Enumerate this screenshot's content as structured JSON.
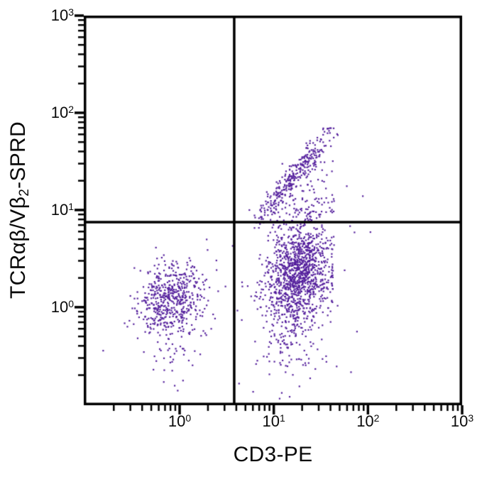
{
  "page": {
    "background": "#ffffff",
    "description": "Flow cytometry two-parameter dot plot with quadrant gates"
  },
  "chart_data": {
    "type": "scatter",
    "plot_kind": "flow-cytometry-dot-plot",
    "title": "",
    "xlabel": "CD3-PE",
    "ylabel_parts": {
      "pre": "TCRαβ/Vβ",
      "sub": "2",
      "post": "-SPRD"
    },
    "x_scale": "log",
    "y_scale": "log",
    "x_range": [
      0.096,
      1000
    ],
    "y_range": [
      0.098,
      1000
    ],
    "x_major_ticks": [
      {
        "base": "10",
        "exp": "0",
        "value": 1
      },
      {
        "base": "10",
        "exp": "1",
        "value": 10
      },
      {
        "base": "10",
        "exp": "2",
        "value": 100
      },
      {
        "base": "10",
        "exp": "3",
        "value": 1000
      }
    ],
    "y_major_ticks": [
      {
        "base": "10",
        "exp": "0",
        "value": 1
      },
      {
        "base": "10",
        "exp": "1",
        "value": 10
      },
      {
        "base": "10",
        "exp": "2",
        "value": 100
      },
      {
        "base": "10",
        "exp": "3",
        "value": 1000
      }
    ],
    "minor_tick_steps": [
      2,
      3,
      4,
      5,
      6,
      7,
      8,
      9
    ],
    "grid": false,
    "legend": false,
    "quadrant_gates": {
      "x_value": 3.8,
      "y_value": 7.5
    },
    "colors": {
      "dots": "#55209d",
      "axis": "#000000",
      "background": "#ffffff"
    },
    "dot_size_px": 2.2,
    "seed": 11,
    "populations": [
      {
        "name": "cd3neg-tcrneg-cluster",
        "kind": "gauss",
        "n": 540,
        "center_log": [
          -0.1,
          0.09
        ],
        "sigma_log": [
          0.17,
          0.19
        ],
        "corr": 0.05
      },
      {
        "name": "cd3neg-low-tail",
        "kind": "gauss",
        "n": 40,
        "center_log": [
          -0.07,
          -0.5
        ],
        "sigma_log": [
          0.13,
          0.28
        ],
        "corr": 0.0
      },
      {
        "name": "cd3pos-main-cluster",
        "kind": "gauss",
        "n": 1180,
        "center_log": [
          1.27,
          0.34
        ],
        "sigma_log": [
          0.175,
          0.27
        ],
        "corr": 0.18,
        "clamp_x_max": 1.615
      },
      {
        "name": "cd3pos-low-tail",
        "kind": "gauss",
        "n": 105,
        "center_log": [
          1.17,
          -0.38
        ],
        "sigma_log": [
          0.16,
          0.3
        ],
        "corr": 0.0,
        "clamp_x_max": 1.615
      },
      {
        "name": "cd3pos-vb2pos-arm",
        "kind": "arm",
        "n": 300,
        "from_log": [
          0.86,
          0.92
        ],
        "to_log": [
          1.56,
          1.77
        ],
        "sigma_perp": 0.055,
        "along_jitter": 0.05,
        "t_mean": 0.48,
        "t_sigma": 0.33
      },
      {
        "name": "arm-scatter",
        "kind": "gauss",
        "n": 110,
        "center_log": [
          1.32,
          1.08
        ],
        "sigma_log": [
          0.2,
          0.22
        ],
        "corr": 0.35,
        "clamp_x_max": 1.615
      },
      {
        "name": "right-outliers",
        "kind": "gauss",
        "n": 13,
        "center_log": [
          1.8,
          0.55
        ],
        "sigma_log": [
          0.16,
          0.55
        ],
        "corr": 0.0,
        "clamp_x_max": 2.2
      },
      {
        "name": "background-sparse",
        "kind": "gauss",
        "n": 22,
        "center_log": [
          0.55,
          -0.1
        ],
        "sigma_log": [
          0.5,
          0.5
        ],
        "corr": 0.0
      }
    ]
  }
}
